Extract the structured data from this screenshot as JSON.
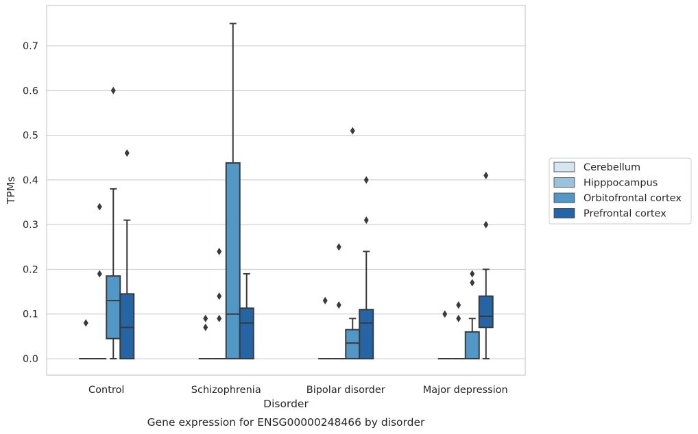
{
  "chart_data": {
    "type": "box",
    "title": "",
    "caption": "Gene expression for ENSG00000248466 by disorder",
    "xlabel": "Disorder",
    "ylabel": "TPMs",
    "ylim": [
      -0.037,
      0.79
    ],
    "yticks": [
      0.0,
      0.1,
      0.2,
      0.3,
      0.4,
      0.5,
      0.6,
      0.7
    ],
    "ytick_labels": [
      "0.0",
      "0.1",
      "0.2",
      "0.3",
      "0.4",
      "0.5",
      "0.6",
      "0.7"
    ],
    "grid": "horizontal",
    "legend_position": "right",
    "categories": [
      "Control",
      "Schizophrenia",
      "Bipolar disorder",
      "Major depression"
    ],
    "series": [
      {
        "name": "Cerebellum",
        "color": "#d5e5f2",
        "boxes": [
          {
            "whislo": 0,
            "q1": 0,
            "med": 0,
            "q3": 0,
            "whishi": 0,
            "fliers": [
              0.08
            ]
          },
          {
            "whislo": 0,
            "q1": 0,
            "med": 0,
            "q3": 0,
            "whishi": 0,
            "fliers": [
              0.07,
              0.09
            ]
          },
          {
            "whislo": 0,
            "q1": 0,
            "med": 0,
            "q3": 0,
            "whishi": 0,
            "fliers": [
              0.13
            ]
          },
          {
            "whislo": 0,
            "q1": 0,
            "med": 0,
            "q3": 0,
            "whishi": 0,
            "fliers": [
              0.1
            ]
          }
        ]
      },
      {
        "name": "Hipppocampus",
        "color": "#9ac2dc",
        "boxes": [
          {
            "whislo": 0,
            "q1": 0,
            "med": 0,
            "q3": 0,
            "whishi": 0,
            "fliers": [
              0.19,
              0.34
            ]
          },
          {
            "whislo": 0,
            "q1": 0,
            "med": 0,
            "q3": 0,
            "whishi": 0,
            "fliers": [
              0.09,
              0.14,
              0.24
            ]
          },
          {
            "whislo": 0,
            "q1": 0,
            "med": 0,
            "q3": 0,
            "whishi": 0,
            "fliers": [
              0.12,
              0.25
            ]
          },
          {
            "whislo": 0,
            "q1": 0,
            "med": 0,
            "q3": 0,
            "whishi": 0,
            "fliers": [
              0.09,
              0.12
            ]
          }
        ]
      },
      {
        "name": "Orbitofrontal cortex",
        "color": "#5298c7",
        "boxes": [
          {
            "whislo": 0,
            "q1": 0.045,
            "med": 0.13,
            "q3": 0.185,
            "whishi": 0.38,
            "fliers": [
              0.6
            ]
          },
          {
            "whislo": 0,
            "q1": 0,
            "med": 0.1,
            "q3": 0.438,
            "whishi": 0.75,
            "fliers": []
          },
          {
            "whislo": 0,
            "q1": 0,
            "med": 0.035,
            "q3": 0.065,
            "whishi": 0.09,
            "fliers": [
              0.51
            ]
          },
          {
            "whislo": 0,
            "q1": 0,
            "med": 0,
            "q3": 0.06,
            "whishi": 0.09,
            "fliers": [
              0.17,
              0.19
            ]
          }
        ]
      },
      {
        "name": "Prefrontal cortex",
        "color": "#2565a5",
        "boxes": [
          {
            "whislo": 0,
            "q1": 0,
            "med": 0.07,
            "q3": 0.145,
            "whishi": 0.31,
            "fliers": [
              0.46
            ]
          },
          {
            "whislo": 0,
            "q1": 0,
            "med": 0.08,
            "q3": 0.113,
            "whishi": 0.19,
            "fliers": []
          },
          {
            "whislo": 0,
            "q1": 0,
            "med": 0.08,
            "q3": 0.11,
            "whishi": 0.24,
            "fliers": [
              0.31,
              0.4
            ]
          },
          {
            "whislo": 0,
            "q1": 0.07,
            "med": 0.095,
            "q3": 0.14,
            "whishi": 0.2,
            "fliers": [
              0.3,
              0.41
            ]
          }
        ]
      }
    ]
  }
}
